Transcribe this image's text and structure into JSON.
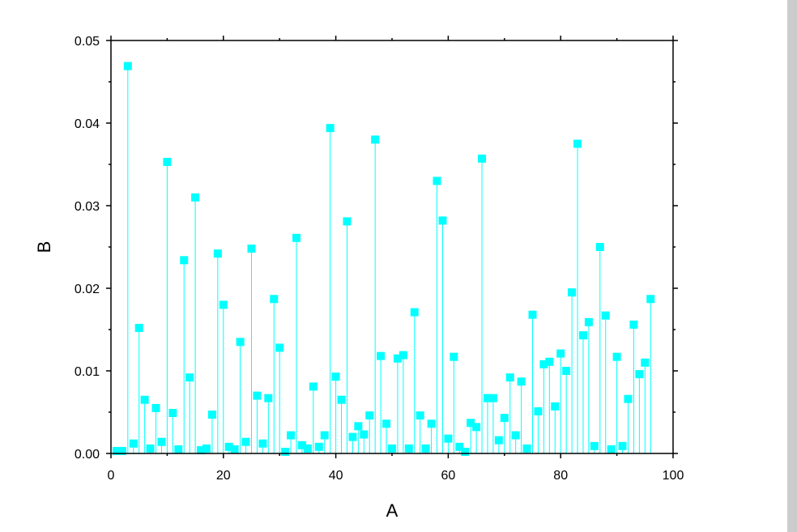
{
  "chart_data": {
    "type": "scatter",
    "style": "drop-lines with square markers",
    "xlabel": "A",
    "ylabel": "B",
    "xlim": [
      0,
      100
    ],
    "ylim": [
      0,
      0.05
    ],
    "xticks": [
      "0",
      "20",
      "40",
      "60",
      "80",
      "100"
    ],
    "yticks": [
      "0.00",
      "0.01",
      "0.02",
      "0.03",
      "0.04",
      "0.05"
    ],
    "grid": false,
    "color": "#00FFFF",
    "series": [
      {
        "x": [
          1,
          2,
          3,
          4,
          5,
          6,
          7,
          8,
          9,
          10,
          11,
          12,
          13,
          14,
          15,
          16,
          17,
          18,
          19,
          20,
          21,
          22,
          23,
          24,
          25,
          26,
          27,
          28,
          29,
          30,
          31,
          32,
          33,
          34,
          35,
          36,
          37,
          38,
          39,
          40,
          41,
          42,
          43,
          44,
          45,
          46,
          47,
          48,
          49,
          50,
          51,
          52,
          53,
          54,
          55,
          56,
          57,
          58,
          59,
          60,
          61,
          62,
          63,
          64,
          65,
          66,
          67,
          68,
          69,
          70,
          71,
          72,
          73,
          74,
          75,
          76,
          77,
          78,
          79,
          80,
          81,
          82,
          83,
          84,
          85,
          86,
          87,
          88,
          89,
          90,
          91,
          92,
          93,
          94,
          95,
          96
        ],
        "y": [
          0.0003,
          0.0003,
          0.0469,
          0.0012,
          0.0152,
          0.0065,
          0.0006,
          0.0055,
          0.0014,
          0.0353,
          0.0049,
          0.0005,
          0.0234,
          0.0092,
          0.031,
          0.0004,
          0.0006,
          0.0047,
          0.0242,
          0.018,
          0.0008,
          0.0005,
          0.0135,
          0.0014,
          0.0248,
          0.007,
          0.0012,
          0.0067,
          0.0187,
          0.0128,
          0.0002,
          0.0022,
          0.0261,
          0.001,
          0.0006,
          0.0081,
          0.0008,
          0.0022,
          0.0394,
          0.0093,
          0.0065,
          0.0281,
          0.002,
          0.0033,
          0.0023,
          0.0046,
          0.038,
          0.0118,
          0.0036,
          0.0006,
          0.0115,
          0.0119,
          0.0006,
          0.0171,
          0.0046,
          0.0006,
          0.0036,
          0.033,
          0.0282,
          0.0018,
          0.0117,
          0.0008,
          0.0002,
          0.0037,
          0.0032,
          0.0357,
          0.0067,
          0.0067,
          0.0016,
          0.0043,
          0.0092,
          0.0022,
          0.0087,
          0.0006,
          0.0168,
          0.0051,
          0.0108,
          0.0111,
          0.0057,
          0.0121,
          0.01,
          0.0195,
          0.0375,
          0.0143,
          0.0159,
          0.0009,
          0.025,
          0.0167,
          0.0005,
          0.0117,
          0.0009,
          0.0066,
          0.0156,
          0.0096,
          0.011,
          0.0187
        ]
      }
    ]
  }
}
